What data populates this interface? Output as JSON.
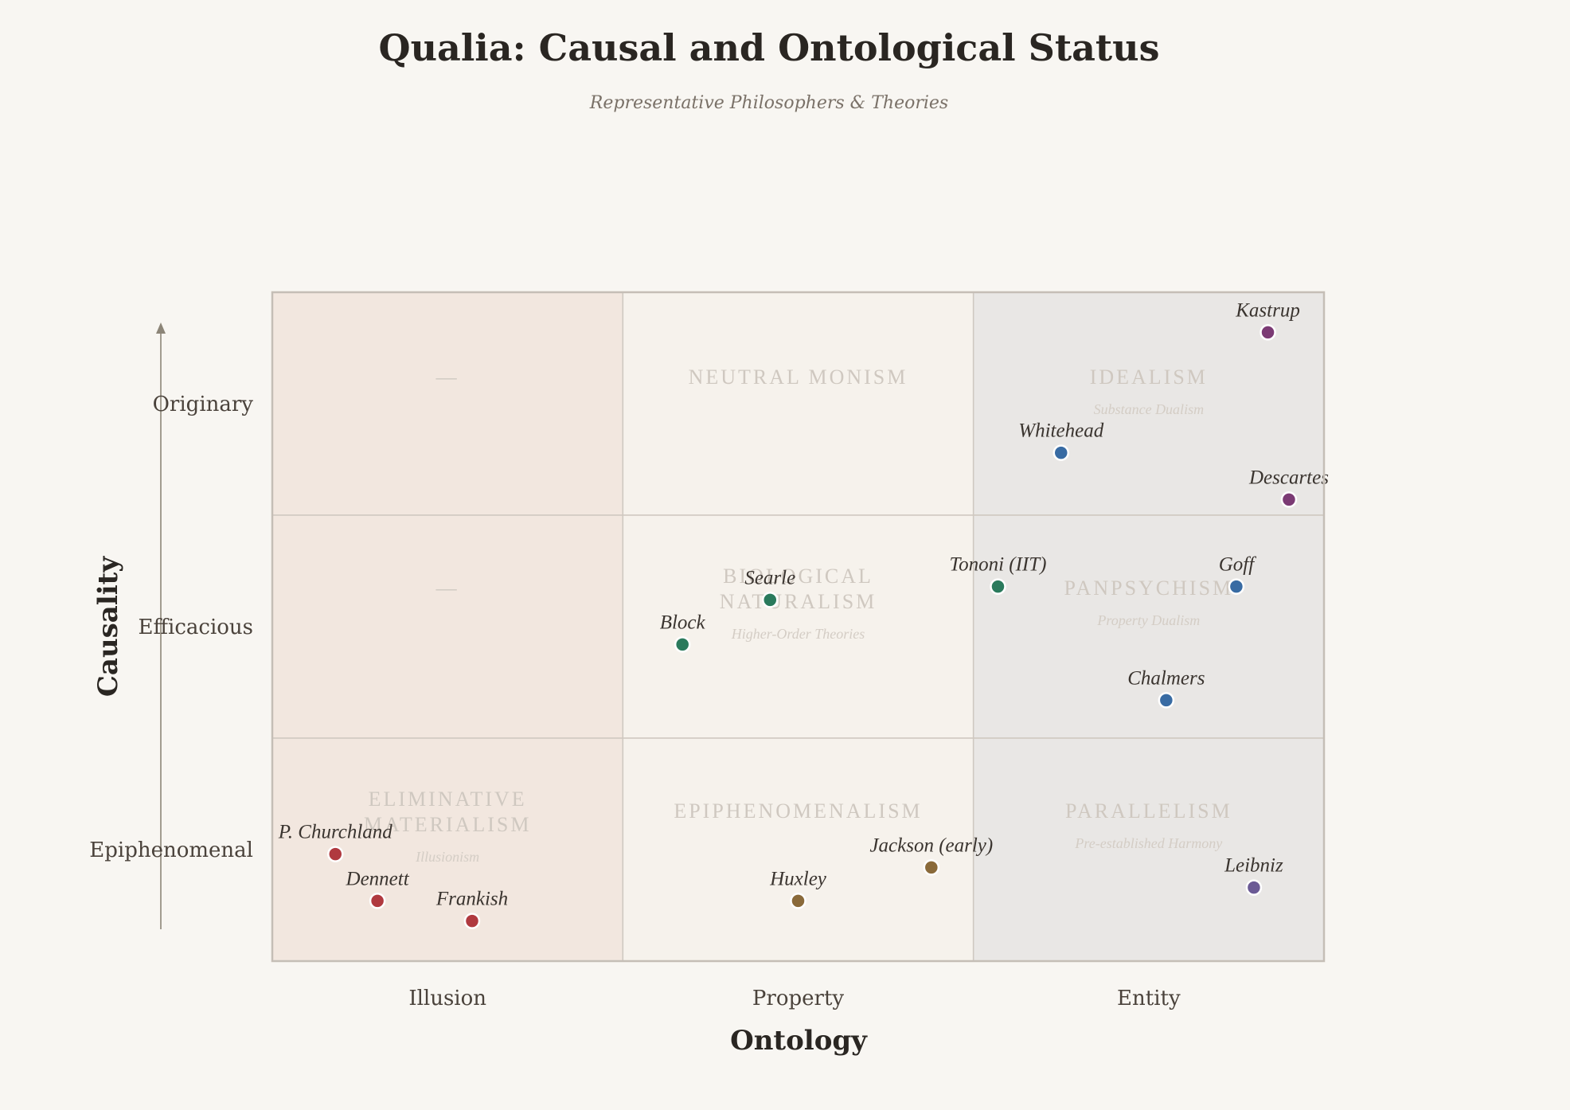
{
  "chart_data": {
    "type": "scatter",
    "title": "Qualia: Causal and Ontological Status",
    "subtitle": "Representative Philosophers & Theories",
    "xlabel": "Ontology",
    "ylabel": "Causality",
    "xlim": [
      0,
      3
    ],
    "ylim": [
      0,
      3
    ],
    "x_categories": [
      "Illusion",
      "Property",
      "Entity"
    ],
    "y_categories": [
      "Epiphenomenal",
      "Efficacious",
      "Originary"
    ],
    "grid": true,
    "regions": [
      {
        "col": 0,
        "row": 2,
        "name": "—",
        "sub": "",
        "fill": "#f2e7df"
      },
      {
        "col": 0,
        "row": 1,
        "name": "—",
        "sub": "",
        "fill": "#f2e7df"
      },
      {
        "col": 0,
        "row": 0,
        "name": "ELIMINATIVE MATERIALISM",
        "name_lines": [
          "ELIMINATIVE",
          "MATERIALISM"
        ],
        "sub": "Illusionism",
        "fill": "#f2e7df"
      },
      {
        "col": 1,
        "row": 2,
        "name": "NEUTRAL MONISM",
        "name_lines": [
          "NEUTRAL MONISM"
        ],
        "sub": "",
        "fill": "#f6f2ec"
      },
      {
        "col": 1,
        "row": 1,
        "name": "BIOLOGICAL NATURALISM",
        "name_lines": [
          "BIOLOGICAL",
          "NATURALISM"
        ],
        "sub": "Higher-Order Theories",
        "fill": "#f6f2ec"
      },
      {
        "col": 1,
        "row": 0,
        "name": "EPIPHENOMENALISM",
        "name_lines": [
          "EPIPHENOMENALISM"
        ],
        "sub": "",
        "fill": "#f6f2ec"
      },
      {
        "col": 2,
        "row": 2,
        "name": "IDEALISM",
        "name_lines": [
          "IDEALISM"
        ],
        "sub": "Substance Dualism",
        "fill": "#e9e7e5"
      },
      {
        "col": 2,
        "row": 1,
        "name": "PANPSYCHISM",
        "name_lines": [
          "PANPSYCHISM"
        ],
        "sub": "Property Dualism",
        "fill": "#e9e7e5"
      },
      {
        "col": 2,
        "row": 0,
        "name": "PARALLELISM",
        "name_lines": [
          "PARALLELISM"
        ],
        "sub": "Pre-established Harmony",
        "fill": "#e9e7e5"
      }
    ],
    "points": [
      {
        "name": "Kastrup",
        "x": 2.84,
        "y": 2.82,
        "color": "#7b3a74"
      },
      {
        "name": "Whitehead",
        "x": 2.25,
        "y": 2.28,
        "color": "#386ba3"
      },
      {
        "name": "Descartes",
        "x": 2.9,
        "y": 2.07,
        "color": "#7b3a74"
      },
      {
        "name": "Tononi (IIT)",
        "x": 2.07,
        "y": 1.68,
        "color": "#2a7a5c"
      },
      {
        "name": "Goff",
        "x": 2.75,
        "y": 1.68,
        "color": "#386ba3"
      },
      {
        "name": "Chalmers",
        "x": 2.55,
        "y": 1.17,
        "color": "#386ba3"
      },
      {
        "name": "Searle",
        "x": 1.42,
        "y": 1.62,
        "color": "#2a7a5c"
      },
      {
        "name": "Block",
        "x": 1.17,
        "y": 1.42,
        "color": "#2a7a5c"
      },
      {
        "name": "Jackson (early)",
        "x": 1.88,
        "y": 0.42,
        "color": "#8a6a3a"
      },
      {
        "name": "Huxley",
        "x": 1.5,
        "y": 0.27,
        "color": "#8a6a3a"
      },
      {
        "name": "Leibniz",
        "x": 2.8,
        "y": 0.33,
        "color": "#6b5a95"
      },
      {
        "name": "P. Churchland",
        "x": 0.18,
        "y": 0.48,
        "color": "#b0393f"
      },
      {
        "name": "Dennett",
        "x": 0.3,
        "y": 0.27,
        "color": "#b0393f"
      },
      {
        "name": "Frankish",
        "x": 0.57,
        "y": 0.18,
        "color": "#b0393f"
      }
    ]
  }
}
